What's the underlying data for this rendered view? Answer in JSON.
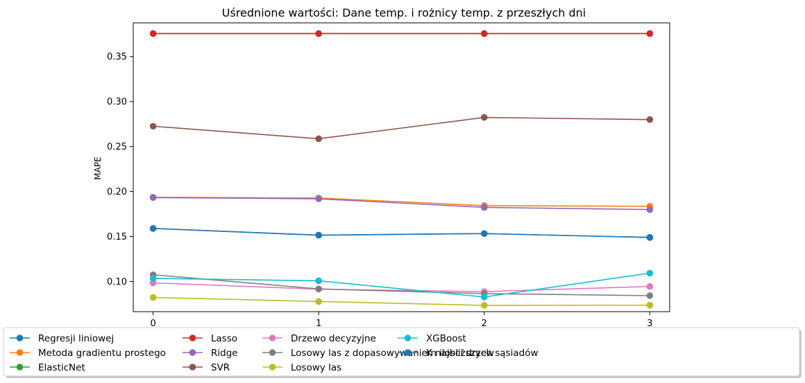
{
  "chart_data": {
    "type": "line",
    "title": "Uśrednione wartości: Dane temp. i rożnicy temp. z przeszłych dni",
    "xlabel": "",
    "ylabel": "MAPE",
    "x": [
      0,
      1,
      2,
      3
    ],
    "x_ticks": [
      "0",
      "1",
      "2",
      "3"
    ],
    "y_ticks": [
      "0.10",
      "0.15",
      "0.20",
      "0.25",
      "0.30",
      "0.35"
    ],
    "y_tick_values": [
      0.1,
      0.15,
      0.2,
      0.25,
      0.3,
      0.35
    ],
    "xlim": [
      -0.12,
      3.12
    ],
    "ylim": [
      0.0665,
      0.3875
    ],
    "grid": false,
    "legend_position": "bottom",
    "legend_columns": 5,
    "series": [
      {
        "name": "Regresji liniowej",
        "color": "#1f77b4",
        "values": [
          0.159,
          0.1515,
          0.1533,
          0.149
        ]
      },
      {
        "name": "Metoda gradientu prostego",
        "color": "#ff7f0e",
        "values": [
          0.1937,
          0.1928,
          0.1843,
          0.1836
        ]
      },
      {
        "name": "ElasticNet",
        "color": "#2ca02c",
        "values": [
          0.3756,
          0.3756,
          0.3756,
          0.3756
        ]
      },
      {
        "name": "Lasso",
        "color": "#d62728",
        "values": [
          0.3756,
          0.3756,
          0.3756,
          0.3756
        ]
      },
      {
        "name": "Ridge",
        "color": "#9467bd",
        "values": [
          0.1933,
          0.1919,
          0.1824,
          0.18
        ]
      },
      {
        "name": "SVR",
        "color": "#8c564b",
        "values": [
          0.2726,
          0.2587,
          0.2824,
          0.28
        ]
      },
      {
        "name": "Drzewo decyzyjne",
        "color": "#e377c2",
        "values": [
          0.0985,
          0.0915,
          0.0888,
          0.0945
        ]
      },
      {
        "name": "Losowy las z dopasowywaniem ilosci drzew",
        "color": "#7f7f7f",
        "values": [
          0.1075,
          0.0918,
          0.0866,
          0.0843
        ]
      },
      {
        "name": "Losowy las",
        "color": "#bcbd22",
        "values": [
          0.0823,
          0.0778,
          0.0735,
          0.0737
        ]
      },
      {
        "name": "XGBoost",
        "color": "#17becf",
        "values": [
          0.1035,
          0.1008,
          0.0828,
          0.1093
        ]
      },
      {
        "name": "K najbliższych sąsiadów",
        "color": "#1f77b4",
        "values": [
          0.159,
          0.1515,
          0.1533,
          0.149
        ]
      }
    ]
  }
}
